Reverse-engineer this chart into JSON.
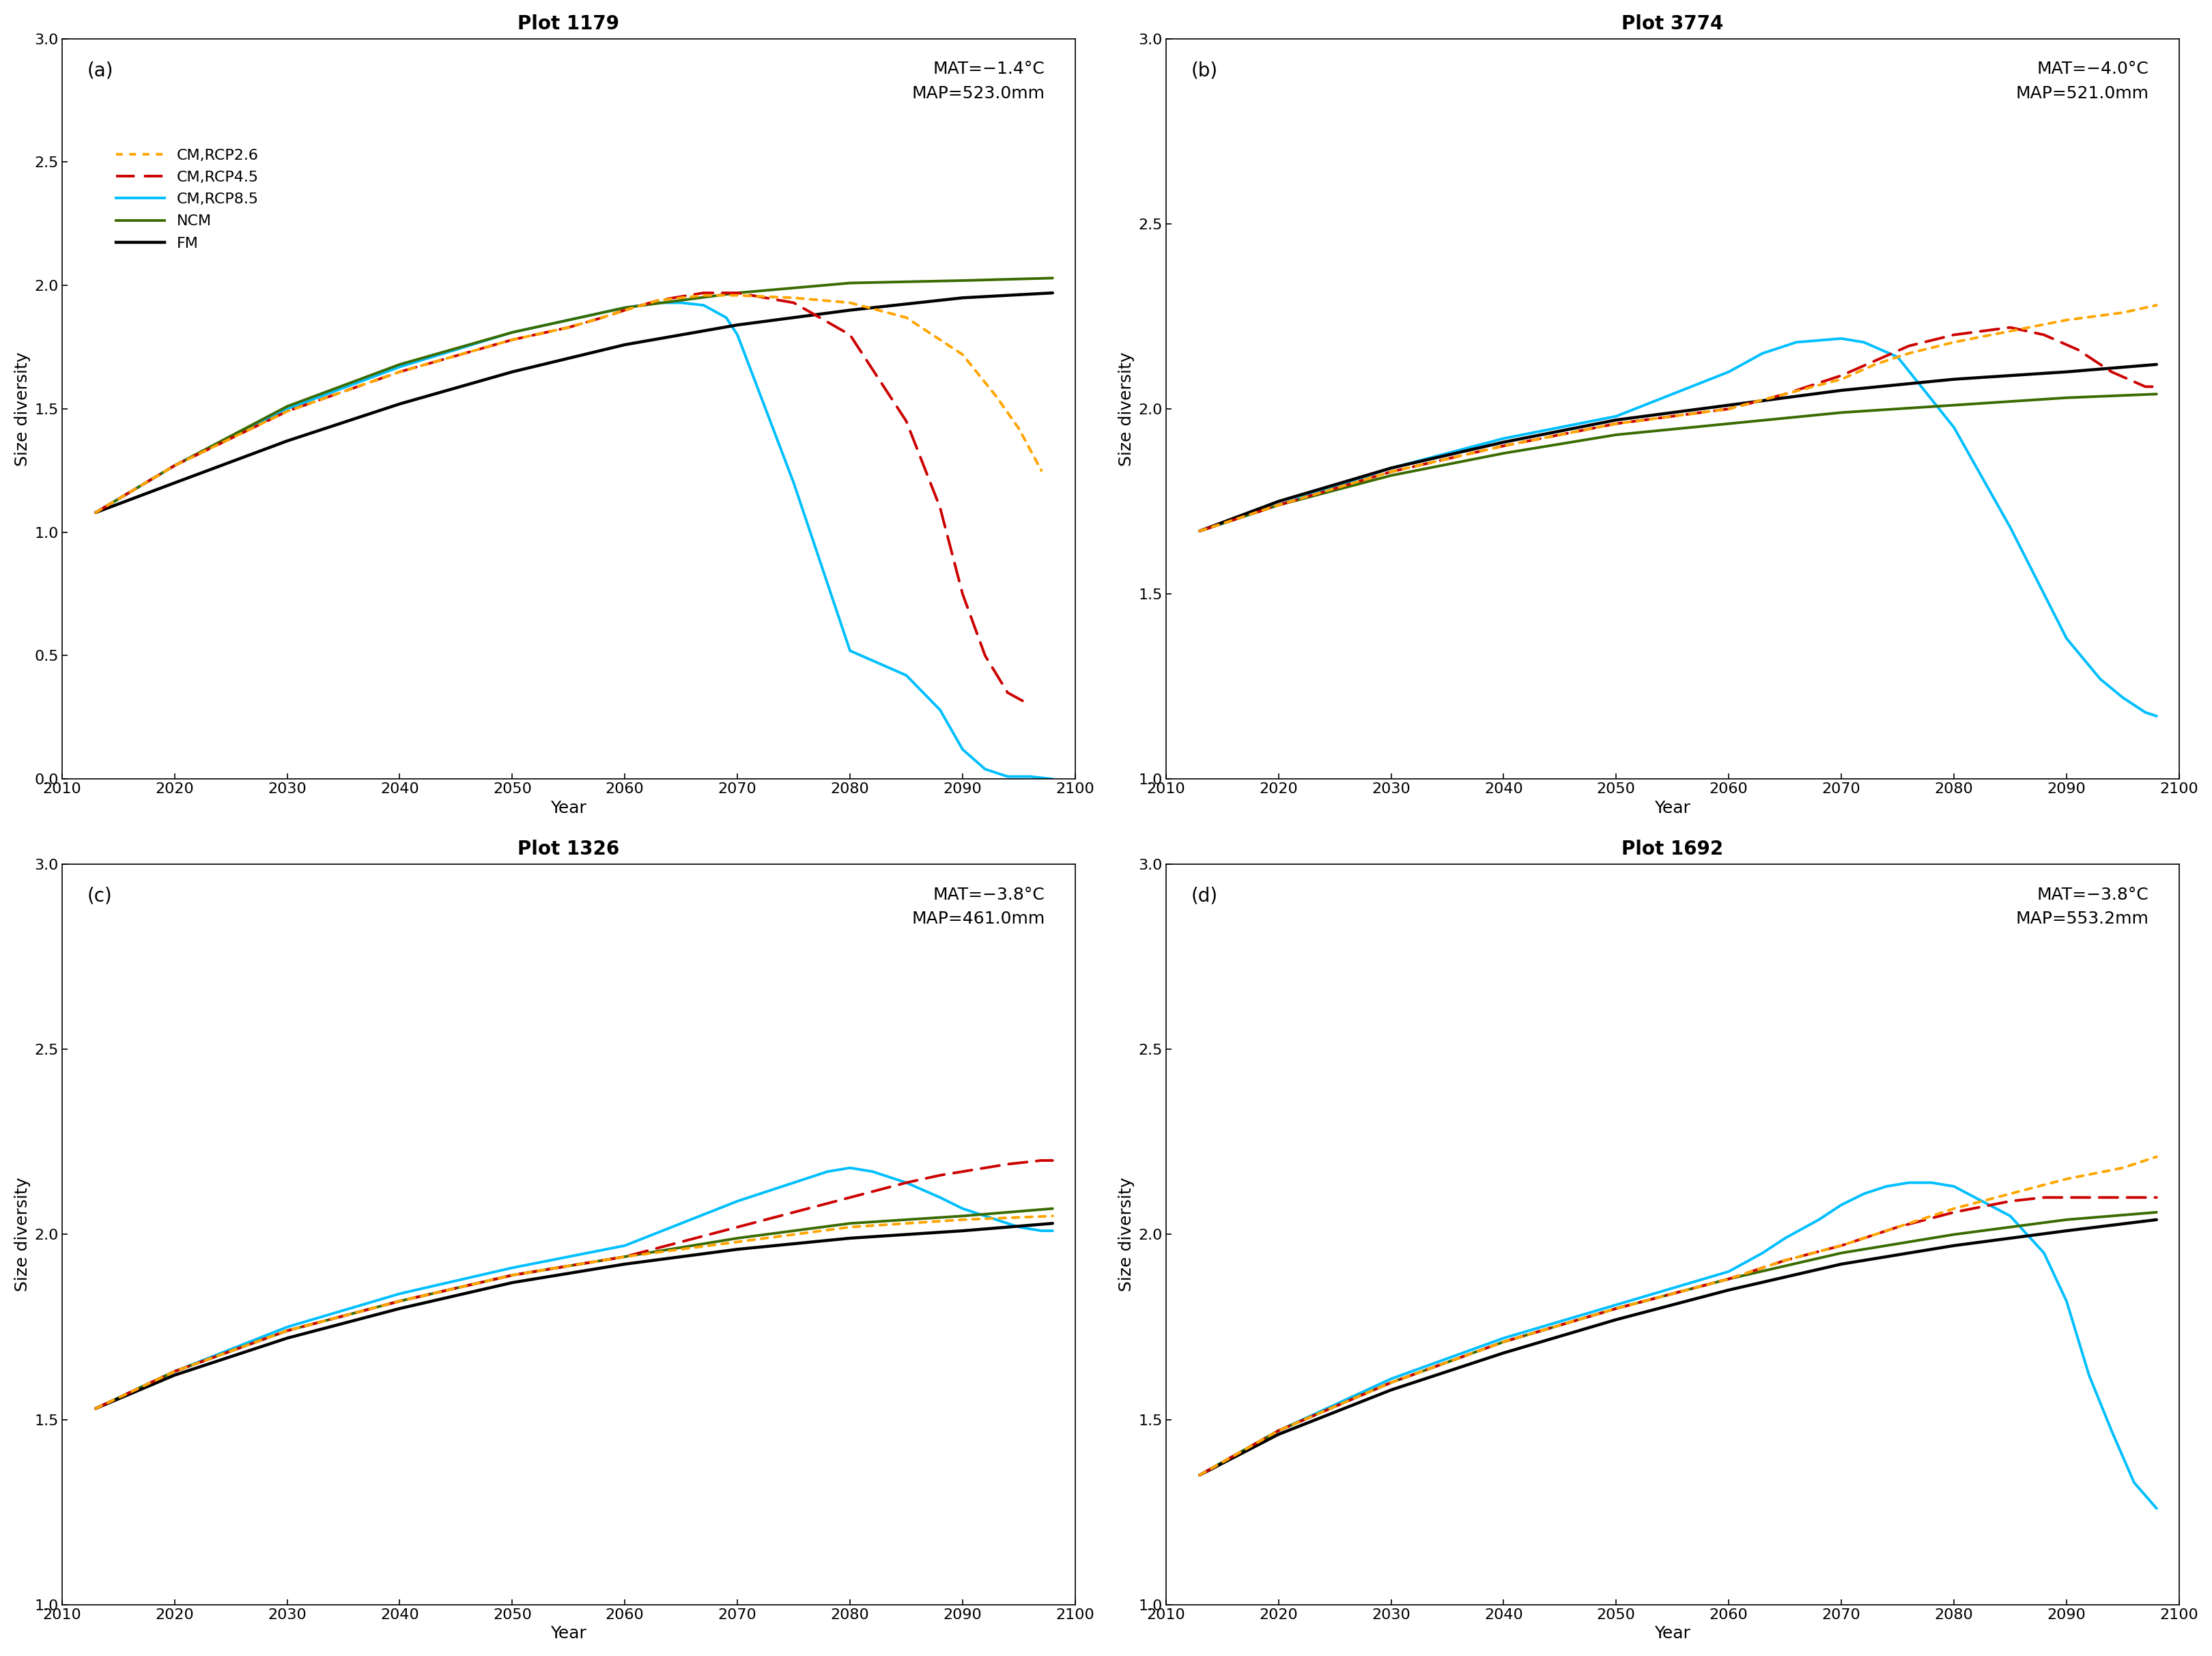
{
  "plots": [
    {
      "label": "(a)",
      "title": "Plot 1179",
      "mat": "MAT=−1.4°C",
      "map": "MAP=523.0mm",
      "ylim": [
        0.0,
        3.0
      ],
      "yticks": [
        0.0,
        0.5,
        1.0,
        1.5,
        2.0,
        2.5,
        3.0
      ],
      "legend": true,
      "series": {
        "RCP2.6": {
          "color": "#FFA500",
          "linestyle": "dotted",
          "linewidth": 2.8,
          "x": [
            2013,
            2020,
            2030,
            2040,
            2050,
            2055,
            2058,
            2060,
            2063,
            2067,
            2070,
            2075,
            2080,
            2085,
            2090,
            2093,
            2095,
            2097
          ],
          "y": [
            1.08,
            1.27,
            1.49,
            1.65,
            1.78,
            1.83,
            1.87,
            1.9,
            1.94,
            1.96,
            1.96,
            1.95,
            1.93,
            1.87,
            1.72,
            1.55,
            1.42,
            1.25
          ]
        },
        "RCP4.5": {
          "color": "#CC0000",
          "linestyle": "dashed",
          "linewidth": 2.8,
          "x": [
            2013,
            2020,
            2030,
            2040,
            2050,
            2055,
            2058,
            2060,
            2063,
            2067,
            2070,
            2075,
            2080,
            2085,
            2088,
            2090,
            2092,
            2094,
            2096
          ],
          "y": [
            1.08,
            1.27,
            1.49,
            1.65,
            1.78,
            1.83,
            1.87,
            1.9,
            1.94,
            1.97,
            1.97,
            1.93,
            1.8,
            1.45,
            1.1,
            0.75,
            0.5,
            0.35,
            0.3
          ]
        },
        "RCP8.5": {
          "color": "#00BFFF",
          "linestyle": "solid",
          "linewidth": 2.8,
          "x": [
            2013,
            2020,
            2030,
            2040,
            2050,
            2055,
            2058,
            2060,
            2063,
            2065,
            2067,
            2069,
            2070,
            2075,
            2080,
            2085,
            2088,
            2090,
            2092,
            2094,
            2096,
            2098
          ],
          "y": [
            1.08,
            1.27,
            1.5,
            1.67,
            1.81,
            1.86,
            1.89,
            1.91,
            1.93,
            1.93,
            1.92,
            1.87,
            1.8,
            1.2,
            0.52,
            0.42,
            0.28,
            0.12,
            0.04,
            0.01,
            0.01,
            0.0
          ]
        },
        "NCM": {
          "color": "#3A6B00",
          "linestyle": "solid",
          "linewidth": 2.8,
          "x": [
            2013,
            2020,
            2030,
            2040,
            2050,
            2060,
            2070,
            2080,
            2090,
            2098
          ],
          "y": [
            1.08,
            1.27,
            1.51,
            1.68,
            1.81,
            1.91,
            1.97,
            2.01,
            2.02,
            2.03
          ]
        },
        "FM": {
          "color": "#000000",
          "linestyle": "solid",
          "linewidth": 3.2,
          "x": [
            2013,
            2020,
            2030,
            2040,
            2050,
            2060,
            2070,
            2080,
            2090,
            2098
          ],
          "y": [
            1.08,
            1.2,
            1.37,
            1.52,
            1.65,
            1.76,
            1.84,
            1.9,
            1.95,
            1.97
          ]
        }
      }
    },
    {
      "label": "(b)",
      "title": "Plot 3774",
      "mat": "MAT=−4.0°C",
      "map": "MAP=521.0mm",
      "ylim": [
        1.0,
        3.0
      ],
      "yticks": [
        1.0,
        1.5,
        2.0,
        2.5,
        3.0
      ],
      "legend": false,
      "series": {
        "RCP2.6": {
          "color": "#FFA500",
          "linestyle": "dotted",
          "linewidth": 2.8,
          "x": [
            2013,
            2020,
            2030,
            2040,
            2050,
            2060,
            2065,
            2070,
            2073,
            2076,
            2080,
            2085,
            2090,
            2095,
            2098
          ],
          "y": [
            1.67,
            1.74,
            1.83,
            1.9,
            1.96,
            2.0,
            2.04,
            2.08,
            2.12,
            2.15,
            2.18,
            2.21,
            2.24,
            2.26,
            2.28
          ]
        },
        "RCP4.5": {
          "color": "#CC0000",
          "linestyle": "dashed",
          "linewidth": 2.8,
          "x": [
            2013,
            2020,
            2030,
            2040,
            2050,
            2060,
            2065,
            2070,
            2073,
            2076,
            2080,
            2085,
            2088,
            2091,
            2094,
            2097,
            2098
          ],
          "y": [
            1.67,
            1.74,
            1.83,
            1.9,
            1.96,
            2.0,
            2.04,
            2.09,
            2.13,
            2.17,
            2.2,
            2.22,
            2.2,
            2.16,
            2.1,
            2.06,
            2.06
          ]
        },
        "RCP8.5": {
          "color": "#00BFFF",
          "linestyle": "solid",
          "linewidth": 2.8,
          "x": [
            2013,
            2020,
            2030,
            2040,
            2050,
            2055,
            2060,
            2063,
            2066,
            2070,
            2072,
            2075,
            2080,
            2085,
            2090,
            2093,
            2095,
            2097,
            2098
          ],
          "y": [
            1.67,
            1.74,
            1.84,
            1.92,
            1.98,
            2.04,
            2.1,
            2.15,
            2.18,
            2.19,
            2.18,
            2.14,
            1.95,
            1.68,
            1.38,
            1.27,
            1.22,
            1.18,
            1.17
          ]
        },
        "NCM": {
          "color": "#3A6B00",
          "linestyle": "solid",
          "linewidth": 2.8,
          "x": [
            2013,
            2020,
            2030,
            2040,
            2050,
            2060,
            2070,
            2080,
            2090,
            2098
          ],
          "y": [
            1.67,
            1.74,
            1.82,
            1.88,
            1.93,
            1.96,
            1.99,
            2.01,
            2.03,
            2.04
          ]
        },
        "FM": {
          "color": "#000000",
          "linestyle": "solid",
          "linewidth": 3.2,
          "x": [
            2013,
            2020,
            2030,
            2040,
            2050,
            2060,
            2070,
            2080,
            2090,
            2098
          ],
          "y": [
            1.67,
            1.75,
            1.84,
            1.91,
            1.97,
            2.01,
            2.05,
            2.08,
            2.1,
            2.12
          ]
        }
      }
    },
    {
      "label": "(c)",
      "title": "Plot 1326",
      "mat": "MAT=−3.8°C",
      "map": "MAP=461.0mm",
      "ylim": [
        1.0,
        3.0
      ],
      "yticks": [
        1.0,
        1.5,
        2.0,
        2.5,
        3.0
      ],
      "legend": false,
      "series": {
        "RCP2.6": {
          "color": "#FFA500",
          "linestyle": "dotted",
          "linewidth": 2.8,
          "x": [
            2013,
            2020,
            2030,
            2040,
            2050,
            2060,
            2070,
            2080,
            2090,
            2098
          ],
          "y": [
            1.53,
            1.63,
            1.74,
            1.82,
            1.89,
            1.94,
            1.98,
            2.02,
            2.04,
            2.05
          ]
        },
        "RCP4.5": {
          "color": "#CC0000",
          "linestyle": "dashed",
          "linewidth": 2.8,
          "x": [
            2013,
            2020,
            2030,
            2040,
            2050,
            2060,
            2065,
            2070,
            2075,
            2080,
            2085,
            2088,
            2090,
            2092,
            2094,
            2097,
            2098
          ],
          "y": [
            1.53,
            1.63,
            1.74,
            1.82,
            1.89,
            1.94,
            1.98,
            2.02,
            2.06,
            2.1,
            2.14,
            2.16,
            2.17,
            2.18,
            2.19,
            2.2,
            2.2
          ]
        },
        "RCP8.5": {
          "color": "#00BFFF",
          "linestyle": "solid",
          "linewidth": 2.8,
          "x": [
            2013,
            2020,
            2030,
            2040,
            2050,
            2060,
            2065,
            2070,
            2075,
            2078,
            2080,
            2082,
            2083,
            2085,
            2088,
            2090,
            2093,
            2095,
            2097,
            2098
          ],
          "y": [
            1.53,
            1.63,
            1.75,
            1.84,
            1.91,
            1.97,
            2.03,
            2.09,
            2.14,
            2.17,
            2.18,
            2.17,
            2.16,
            2.14,
            2.1,
            2.07,
            2.04,
            2.02,
            2.01,
            2.01
          ]
        },
        "NCM": {
          "color": "#3A6B00",
          "linestyle": "solid",
          "linewidth": 2.8,
          "x": [
            2013,
            2020,
            2030,
            2040,
            2050,
            2060,
            2070,
            2080,
            2090,
            2098
          ],
          "y": [
            1.53,
            1.63,
            1.74,
            1.82,
            1.89,
            1.94,
            1.99,
            2.03,
            2.05,
            2.07
          ]
        },
        "FM": {
          "color": "#000000",
          "linestyle": "solid",
          "linewidth": 3.2,
          "x": [
            2013,
            2020,
            2030,
            2040,
            2050,
            2060,
            2070,
            2080,
            2090,
            2098
          ],
          "y": [
            1.53,
            1.62,
            1.72,
            1.8,
            1.87,
            1.92,
            1.96,
            1.99,
            2.01,
            2.03
          ]
        }
      }
    },
    {
      "label": "(d)",
      "title": "Plot 1692",
      "mat": "MAT=−3.8°C",
      "map": "MAP=553.2mm",
      "ylim": [
        1.0,
        3.0
      ],
      "yticks": [
        1.0,
        1.5,
        2.0,
        2.5,
        3.0
      ],
      "legend": false,
      "series": {
        "RCP2.6": {
          "color": "#FFA500",
          "linestyle": "dotted",
          "linewidth": 2.8,
          "x": [
            2013,
            2020,
            2030,
            2040,
            2050,
            2060,
            2065,
            2070,
            2075,
            2080,
            2085,
            2090,
            2095,
            2098
          ],
          "y": [
            1.35,
            1.47,
            1.6,
            1.71,
            1.8,
            1.88,
            1.93,
            1.97,
            2.02,
            2.07,
            2.11,
            2.15,
            2.18,
            2.21
          ]
        },
        "RCP4.5": {
          "color": "#CC0000",
          "linestyle": "dashed",
          "linewidth": 2.8,
          "x": [
            2013,
            2020,
            2030,
            2040,
            2050,
            2060,
            2065,
            2070,
            2075,
            2080,
            2085,
            2088,
            2090,
            2093,
            2095,
            2097,
            2098
          ],
          "y": [
            1.35,
            1.47,
            1.6,
            1.71,
            1.8,
            1.88,
            1.93,
            1.97,
            2.02,
            2.06,
            2.09,
            2.1,
            2.1,
            2.1,
            2.1,
            2.1,
            2.1
          ]
        },
        "RCP8.5": {
          "color": "#00BFFF",
          "linestyle": "solid",
          "linewidth": 2.8,
          "x": [
            2013,
            2020,
            2030,
            2040,
            2050,
            2060,
            2063,
            2065,
            2068,
            2070,
            2072,
            2074,
            2076,
            2078,
            2080,
            2085,
            2088,
            2090,
            2092,
            2094,
            2096,
            2098
          ],
          "y": [
            1.35,
            1.47,
            1.61,
            1.72,
            1.81,
            1.9,
            1.95,
            1.99,
            2.04,
            2.08,
            2.11,
            2.13,
            2.14,
            2.14,
            2.13,
            2.05,
            1.95,
            1.82,
            1.62,
            1.47,
            1.33,
            1.26
          ]
        },
        "NCM": {
          "color": "#3A6B00",
          "linestyle": "solid",
          "linewidth": 2.8,
          "x": [
            2013,
            2020,
            2030,
            2040,
            2050,
            2060,
            2070,
            2080,
            2090,
            2098
          ],
          "y": [
            1.35,
            1.47,
            1.6,
            1.71,
            1.8,
            1.88,
            1.95,
            2.0,
            2.04,
            2.06
          ]
        },
        "FM": {
          "color": "#000000",
          "linestyle": "solid",
          "linewidth": 3.2,
          "x": [
            2013,
            2020,
            2030,
            2040,
            2050,
            2060,
            2070,
            2080,
            2090,
            2098
          ],
          "y": [
            1.35,
            1.46,
            1.58,
            1.68,
            1.77,
            1.85,
            1.92,
            1.97,
            2.01,
            2.04
          ]
        }
      }
    }
  ],
  "legend_labels": [
    "CM,RCP2.6",
    "CM,RCP4.5",
    "CM,RCP8.5",
    "NCM",
    "FM"
  ],
  "legend_styles": [
    {
      "color": "#FFA500",
      "linestyle": "dotted",
      "linewidth": 2.8
    },
    {
      "color": "#CC0000",
      "linestyle": "dashed",
      "linewidth": 2.8
    },
    {
      "color": "#00BFFF",
      "linestyle": "solid",
      "linewidth": 2.8
    },
    {
      "color": "#3A6B00",
      "linestyle": "solid",
      "linewidth": 2.8
    },
    {
      "color": "#000000",
      "linestyle": "solid",
      "linewidth": 3.2
    }
  ],
  "xlabel": "Year",
  "ylabel": "Size diversity",
  "xlim": [
    2010,
    2100
  ],
  "xticks": [
    2010,
    2020,
    2030,
    2040,
    2050,
    2060,
    2070,
    2080,
    2090,
    2100
  ],
  "background_color": "#ffffff",
  "fontsize_title": 20,
  "fontsize_label": 18,
  "fontsize_tick": 16,
  "fontsize_legend": 16,
  "fontsize_annotation": 18
}
